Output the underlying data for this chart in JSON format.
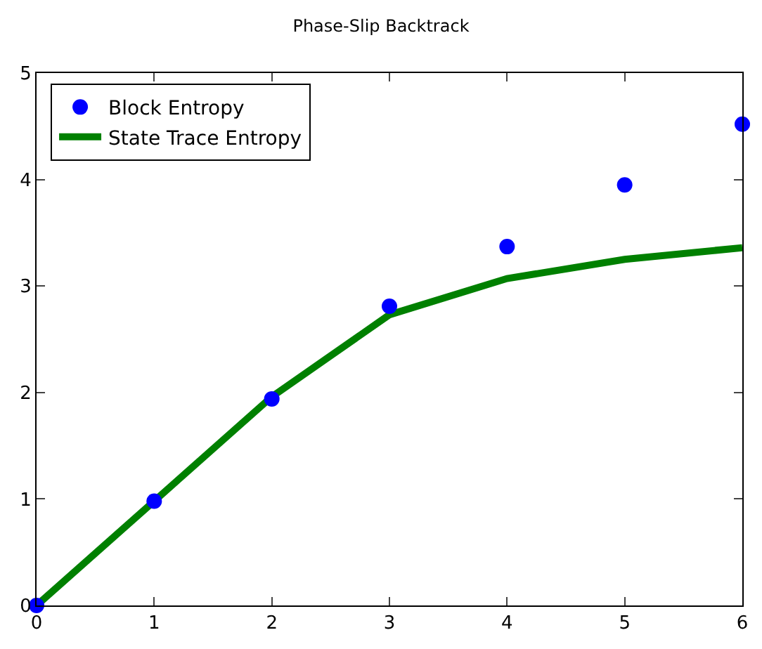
{
  "chart_data": {
    "type": "line",
    "title": "Phase-Slip Backtrack",
    "x": [
      0,
      1,
      2,
      3,
      4,
      5,
      6
    ],
    "series": [
      {
        "name": "Block Entropy",
        "type": "scatter",
        "color": "#0000ff",
        "marker": "circle",
        "values": [
          0,
          0.98,
          1.94,
          2.81,
          3.37,
          3.95,
          4.52
        ]
      },
      {
        "name": "State Trace Entropy",
        "color": "#008000",
        "values": [
          0,
          0.98,
          1.96,
          2.73,
          3.07,
          3.25,
          3.36
        ]
      }
    ],
    "xlim": [
      0,
      6
    ],
    "xticks": [
      0,
      1,
      2,
      3,
      4,
      5,
      6
    ],
    "ylim": [
      0,
      5
    ],
    "yticks": [
      0,
      1,
      2,
      3,
      4,
      5
    ],
    "legend": "top left"
  }
}
